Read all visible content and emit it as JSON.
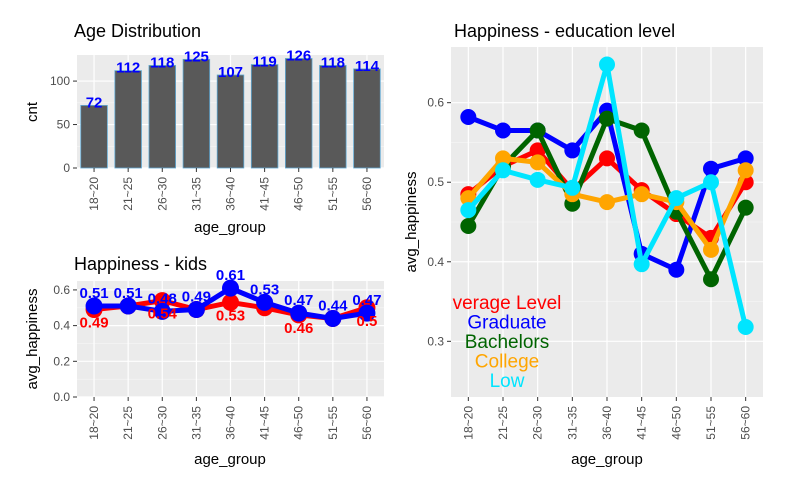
{
  "chart_data": [
    {
      "type": "bar",
      "title": "Age Distribution",
      "xlabel": "age_group",
      "ylabel": "cnt",
      "categories": [
        "18~20",
        "21~25",
        "26~30",
        "31~35",
        "36~40",
        "41~45",
        "46~50",
        "51~55",
        "56~60"
      ],
      "values": [
        72,
        112,
        118,
        125,
        107,
        119,
        126,
        118,
        114
      ],
      "value_labels": [
        "72",
        "112",
        "118",
        "125",
        "107",
        "119",
        "126",
        "118",
        "114"
      ],
      "ylim": [
        0,
        130
      ],
      "yticks": [
        0,
        50,
        100
      ],
      "ytick_labels": [
        "0",
        "50",
        "100"
      ],
      "bar_color": "#595959",
      "bar_outline": "#5fa8d3",
      "label_color": "#0000ff",
      "grid": true
    },
    {
      "type": "line",
      "title": "Happiness - kids",
      "xlabel": "age_group",
      "ylabel": "avg_happiness",
      "categories": [
        "18~20",
        "21~25",
        "26~30",
        "31~35",
        "36~40",
        "41~45",
        "46~50",
        "51~55",
        "56~60"
      ],
      "ylim": [
        0,
        0.65
      ],
      "yticks": [
        0.0,
        0.2,
        0.4,
        0.6
      ],
      "ytick_labels": [
        "0.0",
        "0.2",
        "0.4",
        "0.6"
      ],
      "grid": true,
      "series": [
        {
          "color": "#ff0000",
          "values": [
            0.49,
            0.51,
            0.54,
            0.49,
            0.53,
            0.5,
            0.46,
            0.44,
            0.5
          ],
          "labels": [
            "0.49",
            "",
            "0.54",
            "",
            "0.53",
            "",
            "0.46",
            "",
            "0.5"
          ]
        },
        {
          "color": "#0000ff",
          "values": [
            0.51,
            0.51,
            0.48,
            0.49,
            0.61,
            0.53,
            0.47,
            0.44,
            0.47
          ],
          "labels": [
            "0.51",
            "0.51",
            "0.48",
            "0.49",
            "0.61",
            "0.53",
            "0.47",
            "0.44",
            "0.47"
          ]
        }
      ]
    },
    {
      "type": "line",
      "title": "Happiness - education level",
      "xlabel": "age_group",
      "ylabel": "avg_happiness",
      "categories": [
        "18~20",
        "21~25",
        "26~30",
        "31~35",
        "36~40",
        "41~45",
        "46~50",
        "51~55",
        "56~60"
      ],
      "ylim": [
        0.23,
        0.67
      ],
      "yticks": [
        0.3,
        0.4,
        0.5,
        0.6
      ],
      "ytick_labels": [
        "0.3",
        "0.4",
        "0.5",
        "0.6"
      ],
      "grid": true,
      "series": [
        {
          "name": "Average Level",
          "shown_legend_text": "verage Level",
          "color": "#ff0000",
          "values": [
            0.485,
            0.52,
            0.54,
            0.49,
            0.53,
            0.49,
            0.46,
            0.43,
            0.5
          ]
        },
        {
          "name": "Graduate",
          "shown_legend_text": "Graduate",
          "color": "#0000ff",
          "values": [
            0.582,
            0.565,
            0.565,
            0.54,
            0.59,
            0.41,
            0.39,
            0.517,
            0.53
          ]
        },
        {
          "name": "Bachelors",
          "shown_legend_text": "Bachelors",
          "color": "#006400",
          "values": [
            0.445,
            0.52,
            0.565,
            0.473,
            0.58,
            0.565,
            0.463,
            0.378,
            0.468
          ]
        },
        {
          "name": "College",
          "shown_legend_text": "College",
          "color": "#ffa500",
          "values": [
            0.48,
            0.53,
            0.525,
            0.485,
            0.475,
            0.485,
            0.475,
            0.415,
            0.515
          ]
        },
        {
          "name": "Low",
          "shown_legend_text": "Low",
          "color": "#00e5ff",
          "values": [
            0.465,
            0.515,
            0.503,
            0.493,
            0.648,
            0.397,
            0.48,
            0.5,
            0.318
          ]
        }
      ]
    }
  ]
}
